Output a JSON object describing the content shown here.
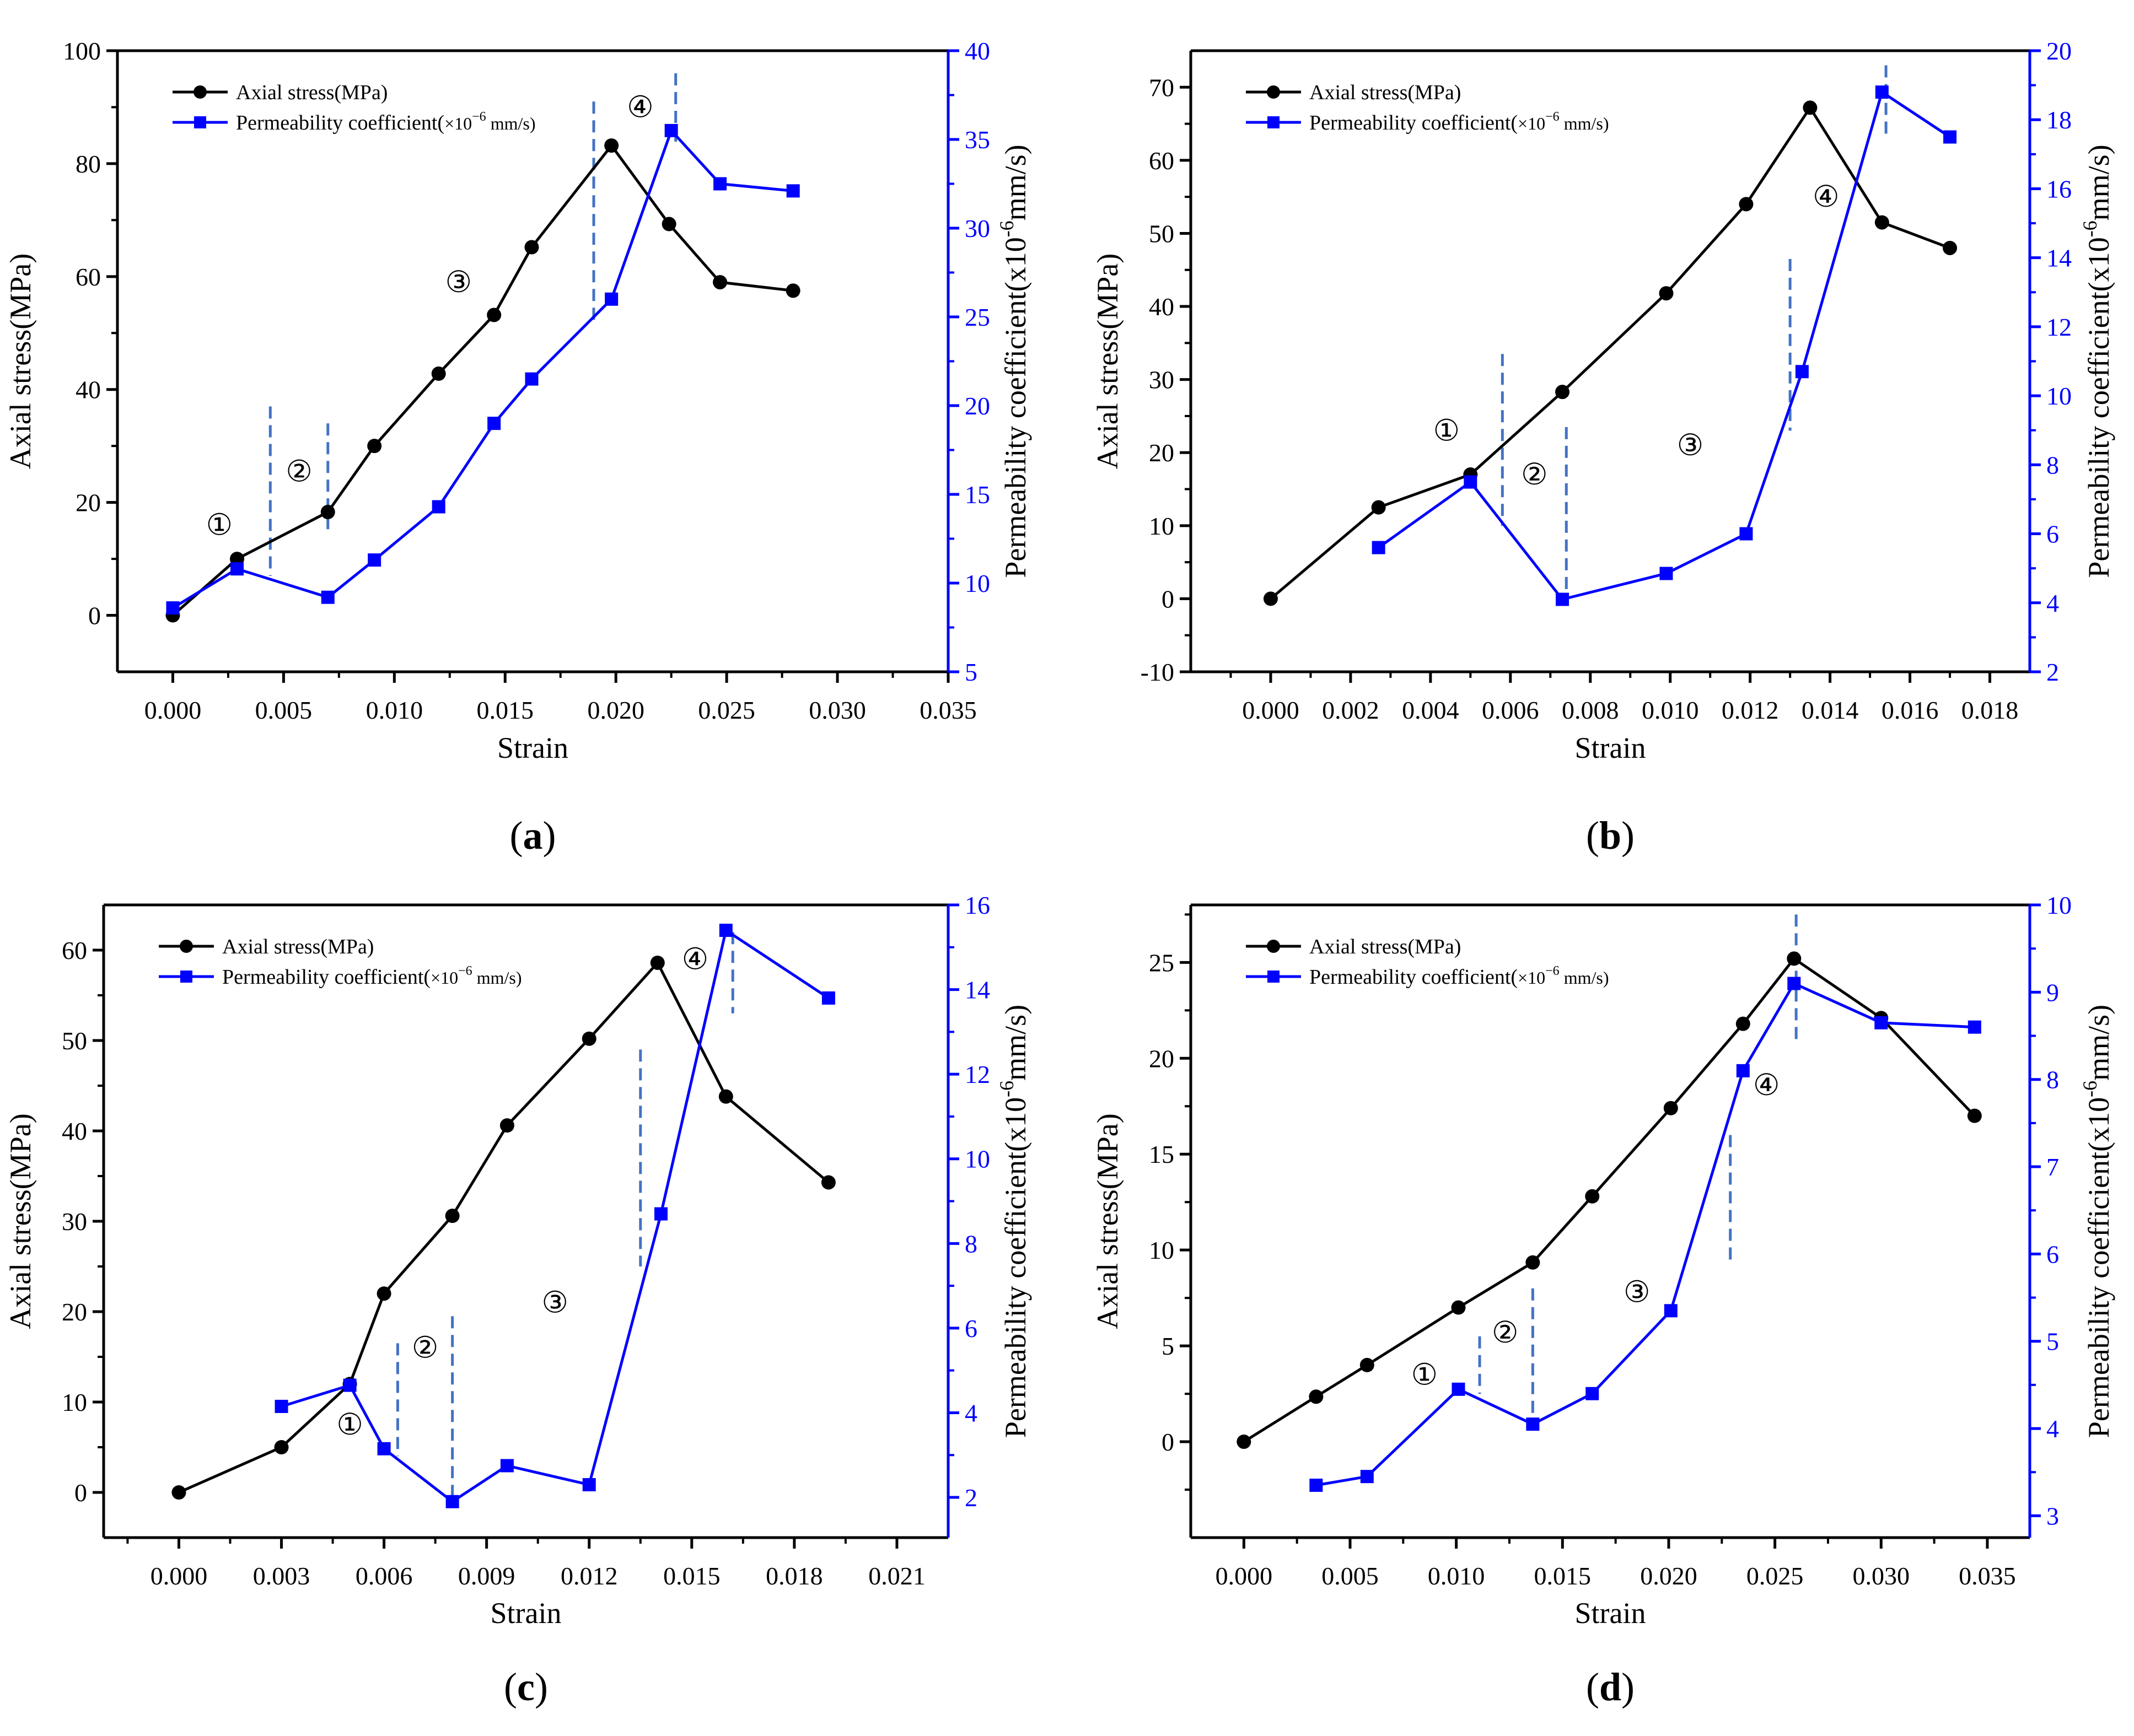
{
  "chart_data": [
    {
      "id": "a",
      "caption": "(a)",
      "caption_letter": "a",
      "type": "line",
      "xlabel": "Strain",
      "ylabel": "Axial stress(MPa)",
      "y2label_main": "Permeability coefficient(x10",
      "y2label_exp": "-6",
      "y2label_tail": "mm/s)",
      "xlim": [
        -0.0025,
        0.035
      ],
      "ylim": [
        -10,
        100
      ],
      "y2lim": [
        5,
        40
      ],
      "xticks": [
        "0.000",
        "0.005",
        "0.010",
        "0.015",
        "0.020",
        "0.025",
        "0.030",
        "0.035"
      ],
      "xtick_values": [
        0,
        0.005,
        0.01,
        0.015,
        0.02,
        0.025,
        0.03,
        0.035
      ],
      "yticks": [
        "0",
        "20",
        "40",
        "60",
        "80",
        "100"
      ],
      "ytick_values": [
        0,
        20,
        40,
        60,
        80,
        100
      ],
      "y2ticks": [
        "5",
        "10",
        "15",
        "20",
        "25",
        "30",
        "35",
        "40"
      ],
      "y2tick_values": [
        5,
        10,
        15,
        20,
        25,
        30,
        35,
        40
      ],
      "legend": {
        "stress": "Axial stress(MPa)",
        "perm_main": "Permeability coefficient(",
        "perm_factor": "×10",
        "perm_exp": "−6",
        "perm_tail": " mm/s)"
      },
      "series": [
        {
          "name": "Axial stress(MPa)",
          "axis": "left",
          "color": "#000000",
          "marker": "circle",
          "x": [
            0,
            0.0029,
            0.007,
            0.0091,
            0.012,
            0.0145,
            0.0162,
            0.0198,
            0.0224,
            0.0247,
            0.028
          ],
          "y": [
            0,
            10,
            18.3,
            30,
            42.8,
            53.2,
            65.2,
            83.2,
            69.3,
            59,
            57.5
          ]
        },
        {
          "name": "Permeability coefficient(×10−6 mm/s)",
          "axis": "right",
          "color": "#0000ff",
          "marker": "square",
          "x": [
            0,
            0.0029,
            0.007,
            0.0091,
            0.012,
            0.0145,
            0.0162,
            0.0198,
            0.0225,
            0.0247,
            0.028
          ],
          "y": [
            8.6,
            10.8,
            9.2,
            11.3,
            14.3,
            19,
            21.5,
            26,
            35.5,
            32.5,
            32.1
          ]
        }
      ],
      "stage_lines": [
        {
          "x": 0.0044,
          "y_top": 37,
          "y_bottom": 7
        },
        {
          "x": 0.007,
          "y_top": 34,
          "y_bottom": 15
        },
        {
          "x": 0.019,
          "y_top": 91,
          "y_bottom": 52
        },
        {
          "x": 0.0227,
          "y_top": 96,
          "y_bottom": 83
        }
      ],
      "annotations": [
        {
          "text": "①",
          "x": 0.0021,
          "y": 16
        },
        {
          "text": "②",
          "x": 0.0057,
          "y": 25.5
        },
        {
          "text": "③",
          "x": 0.0129,
          "y": 59
        },
        {
          "text": "④",
          "x": 0.0211,
          "y": 90
        }
      ]
    },
    {
      "id": "b",
      "caption": "(b)",
      "caption_letter": "b",
      "type": "line",
      "xlabel": "Strain",
      "ylabel": "Axial stress(MPa)",
      "y2label_main": "Permeability coefficient(x10",
      "y2label_exp": "-6",
      "y2label_tail": "mm/s)",
      "xlim": [
        -0.002,
        0.019
      ],
      "ylim": [
        -10,
        75
      ],
      "y2lim": [
        2,
        20
      ],
      "xticks": [
        "0.000",
        "0.002",
        "0.004",
        "0.006",
        "0.008",
        "0.010",
        "0.012",
        "0.014",
        "0.016",
        "0.018"
      ],
      "xtick_values": [
        0,
        0.002,
        0.004,
        0.006,
        0.008,
        0.01,
        0.012,
        0.014,
        0.016,
        0.018
      ],
      "yticks": [
        "-10",
        "0",
        "10",
        "20",
        "30",
        "40",
        "50",
        "60",
        "70"
      ],
      "ytick_values": [
        -10,
        0,
        10,
        20,
        30,
        40,
        50,
        60,
        70
      ],
      "y2ticks": [
        "2",
        "4",
        "6",
        "8",
        "10",
        "12",
        "14",
        "16",
        "18",
        "20"
      ],
      "y2tick_values": [
        2,
        4,
        6,
        8,
        10,
        12,
        14,
        16,
        18,
        20
      ],
      "legend": {
        "stress": "Axial stress(MPa)",
        "perm_main": "Permeability coefficient(",
        "perm_factor": "×10",
        "perm_exp": "−6",
        "perm_tail": " mm/s)"
      },
      "series": [
        {
          "name": "Axial stress(MPa)",
          "axis": "left",
          "color": "#000000",
          "marker": "circle",
          "x": [
            0,
            0.0027,
            0.005,
            0.0073,
            0.0099,
            0.0119,
            0.0135,
            0.0153,
            0.017
          ],
          "y": [
            0,
            12.5,
            17,
            28.3,
            41.8,
            54,
            67.2,
            51.5,
            48
          ]
        },
        {
          "name": "Permeability coefficient(×10−6 mm/s)",
          "axis": "right",
          "color": "#0000ff",
          "marker": "square",
          "x": [
            0.0027,
            0.005,
            0.0073,
            0.0099,
            0.0119,
            0.0133,
            0.0153,
            0.017
          ],
          "y": [
            5.6,
            7.5,
            4.1,
            4.85,
            6,
            10.7,
            18.8,
            17.5
          ]
        }
      ],
      "stage_lines": [
        {
          "x": 0.0058,
          "y_top": 33.5,
          "y_bottom": 10
        },
        {
          "x": 0.0074,
          "y_top": 23.5,
          "y_bottom": 0
        },
        {
          "x": 0.013,
          "y_top": 46.5,
          "y_bottom": 23
        },
        {
          "x": 0.0154,
          "y_top": 73,
          "y_bottom": 63
        }
      ],
      "annotations": [
        {
          "text": "①",
          "x": 0.0044,
          "y": 23
        },
        {
          "text": "②",
          "x": 0.0066,
          "y": 17
        },
        {
          "text": "③",
          "x": 0.0105,
          "y": 21
        },
        {
          "text": "④",
          "x": 0.0139,
          "y": 55
        }
      ]
    },
    {
      "id": "c",
      "caption": "(c)",
      "caption_letter": "c",
      "type": "line",
      "xlabel": "Strain",
      "ylabel": "Axial stress(MPa)",
      "y2label_main": "Permeability coefficient(x10",
      "y2label_exp": "-6",
      "y2label_tail": "mm/s)",
      "xlim": [
        -0.0022,
        0.0225
      ],
      "ylim": [
        -5,
        65
      ],
      "y2lim": [
        1.05,
        16
      ],
      "xticks": [
        "0.000",
        "0.003",
        "0.006",
        "0.009",
        "0.012",
        "0.015",
        "0.018",
        "0.021"
      ],
      "xtick_values": [
        0,
        0.003,
        0.006,
        0.009,
        0.012,
        0.015,
        0.018,
        0.021
      ],
      "yticks": [
        "0",
        "10",
        "20",
        "30",
        "40",
        "50",
        "60"
      ],
      "ytick_values": [
        0,
        10,
        20,
        30,
        40,
        50,
        60
      ],
      "y2ticks": [
        "2",
        "4",
        "6",
        "8",
        "10",
        "12",
        "14",
        "16"
      ],
      "y2tick_values": [
        2,
        4,
        6,
        8,
        10,
        12,
        14,
        16
      ],
      "legend": {
        "stress": "Axial stress(MPa)",
        "perm_main": "Permeability coefficient(",
        "perm_factor": "×10",
        "perm_exp": "−6",
        "perm_tail": " mm/s)"
      },
      "series": [
        {
          "name": "Axial stress(MPa)",
          "axis": "left",
          "color": "#000000",
          "marker": "circle",
          "x": [
            0,
            0.003,
            0.005,
            0.006,
            0.008,
            0.0096,
            0.012,
            0.014,
            0.016,
            0.019
          ],
          "y": [
            0,
            5,
            12,
            22,
            30.6,
            40.6,
            50.2,
            58.6,
            43.8,
            34.3
          ]
        },
        {
          "name": "Permeability coefficient(×10−6 mm/s)",
          "axis": "right",
          "color": "#0000ff",
          "marker": "square",
          "x": [
            0.003,
            0.005,
            0.006,
            0.008,
            0.0096,
            0.012,
            0.0141,
            0.016,
            0.019
          ],
          "y": [
            4.15,
            4.65,
            3.15,
            1.9,
            2.75,
            2.3,
            8.7,
            15.4,
            13.8
          ]
        }
      ],
      "stage_lines": [
        {
          "x": 0.0064,
          "y_top": 16.5,
          "y_bottom": 4
        },
        {
          "x": 0.008,
          "y_top": 19.5,
          "y_bottom": -1
        },
        {
          "x": 0.0135,
          "y_top": 49,
          "y_bottom": 25
        },
        {
          "x": 0.0162,
          "y_top": 62,
          "y_bottom": 53
        }
      ],
      "annotations": [
        {
          "text": "①",
          "x": 0.005,
          "y": 7.5
        },
        {
          "text": "②",
          "x": 0.0072,
          "y": 16
        },
        {
          "text": "③",
          "x": 0.011,
          "y": 21
        },
        {
          "text": "④",
          "x": 0.0151,
          "y": 59
        }
      ]
    },
    {
      "id": "d",
      "caption": "(d)",
      "caption_letter": "d",
      "type": "line",
      "xlabel": "Strain",
      "ylabel": "Axial stress(MPa)",
      "y2label_main": "Permeability coefficient(x10",
      "y2label_exp": "-6",
      "y2label_tail": "mm/s)",
      "xlim": [
        -0.0025,
        0.037
      ],
      "ylim": [
        -5,
        28
      ],
      "y2lim": [
        2.75,
        10
      ],
      "xticks": [
        "0.000",
        "0.005",
        "0.010",
        "0.015",
        "0.020",
        "0.025",
        "0.030",
        "0.035"
      ],
      "xtick_values": [
        0,
        0.005,
        0.01,
        0.015,
        0.02,
        0.025,
        0.03,
        0.035
      ],
      "yticks": [
        "0",
        "5",
        "10",
        "15",
        "20",
        "25"
      ],
      "ytick_values": [
        0,
        5,
        10,
        15,
        20,
        25
      ],
      "y2ticks": [
        "3",
        "4",
        "5",
        "6",
        "7",
        "8",
        "9",
        "10"
      ],
      "y2tick_values": [
        3,
        4,
        5,
        6,
        7,
        8,
        9,
        10
      ],
      "legend": {
        "stress": "Axial stress(MPa)",
        "perm_main": "Permeability coefficient(",
        "perm_factor": "×10",
        "perm_exp": "−6",
        "perm_tail": " mm/s)"
      },
      "series": [
        {
          "name": "Axial stress(MPa)",
          "axis": "left",
          "color": "#000000",
          "marker": "circle",
          "x": [
            0,
            0.0034,
            0.0058,
            0.0101,
            0.0136,
            0.0164,
            0.0201,
            0.0235,
            0.0259,
            0.03,
            0.0344
          ],
          "y": [
            0,
            2.35,
            4,
            7,
            9.35,
            12.8,
            17.4,
            21.8,
            25.2,
            22.1,
            17
          ]
        },
        {
          "name": "Permeability coefficient(×10−6 mm/s)",
          "axis": "right",
          "color": "#0000ff",
          "marker": "square",
          "x": [
            0.0034,
            0.0058,
            0.0101,
            0.0136,
            0.0164,
            0.0201,
            0.0235,
            0.0259,
            0.03,
            0.0344
          ],
          "y": [
            3.35,
            3.45,
            4.45,
            4.05,
            4.4,
            5.35,
            8.1,
            9.1,
            8.65,
            8.6
          ]
        }
      ],
      "stage_lines": [
        {
          "x": 0.0111,
          "y_top": 5.5,
          "y_bottom": 2.5
        },
        {
          "x": 0.0136,
          "y_top": 8,
          "y_bottom": 1.5
        },
        {
          "x": 0.0229,
          "y_top": 16,
          "y_bottom": 9.5
        },
        {
          "x": 0.026,
          "y_top": 27.5,
          "y_bottom": 21
        }
      ],
      "annotations": [
        {
          "text": "①",
          "x": 0.0085,
          "y": 3.5
        },
        {
          "text": "②",
          "x": 0.0123,
          "y": 5.7
        },
        {
          "text": "③",
          "x": 0.0185,
          "y": 7.8
        },
        {
          "text": "④",
          "x": 0.0246,
          "y": 18.6
        }
      ]
    }
  ],
  "colors": {
    "stress": "#000000",
    "permeability": "#0000ff",
    "right_axis": "#0000ff",
    "stage_line": "#4472c4"
  }
}
